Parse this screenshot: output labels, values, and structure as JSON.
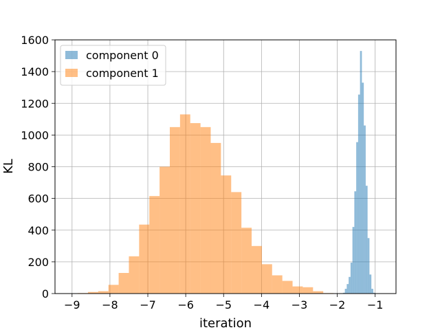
{
  "chart_data": {
    "type": "bar",
    "title": "",
    "xlabel": "iteration",
    "ylabel": "KL",
    "xlim": [
      -9.45,
      -0.45
    ],
    "ylim": [
      0,
      1600
    ],
    "x_ticks": [
      -9,
      -8,
      -7,
      -6,
      -5,
      -4,
      -3,
      -2,
      -1
    ],
    "x_tick_labels": [
      "−9",
      "−8",
      "−7",
      "−6",
      "−5",
      "−4",
      "−3",
      "−2",
      "−1"
    ],
    "y_ticks": [
      0,
      200,
      400,
      600,
      800,
      1000,
      1200,
      1400,
      1600
    ],
    "y_tick_labels": [
      "0",
      "200",
      "400",
      "600",
      "800",
      "1000",
      "1200",
      "1400",
      "1600"
    ],
    "grid": true,
    "legend_position": "upper-left",
    "series": [
      {
        "name": "component 0",
        "color": "#1f77b4",
        "opacity": 0.5,
        "bin_start": -1.9,
        "bin_width": 0.05,
        "counts": [
          2,
          5,
          30,
          60,
          105,
          195,
          420,
          645,
          955,
          1255,
          1530,
          1330,
          1060,
          680,
          350,
          120,
          30,
          5
        ]
      },
      {
        "name": "component 1",
        "color": "#ff7f0e",
        "opacity": 0.5,
        "bin_start": -8.85,
        "bin_width": 0.27,
        "counts": [
          3,
          10,
          15,
          55,
          130,
          235,
          435,
          615,
          800,
          1050,
          1130,
          1075,
          1050,
          950,
          745,
          640,
          415,
          300,
          185,
          115,
          80,
          45,
          40,
          15,
          3
        ]
      }
    ]
  }
}
